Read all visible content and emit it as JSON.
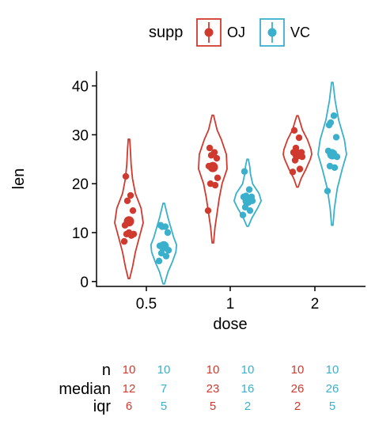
{
  "chart_data": {
    "type": "violin",
    "xlabel": "dose",
    "ylabel": "len",
    "ylim": [
      -1,
      43
    ],
    "yticks": [
      0,
      10,
      20,
      30,
      40
    ],
    "categories": [
      "0.5",
      "1",
      "2"
    ],
    "legend": {
      "title": "supp",
      "position": "top"
    },
    "grid": false,
    "series": [
      {
        "name": "OJ",
        "color": "#D03A2E",
        "violins": [
          {
            "min": 0.6,
            "max": 29.1,
            "median": 12.3,
            "profile": [
              [
                0.6,
                0.05
              ],
              [
                3,
                0.25
              ],
              [
                6,
                0.45
              ],
              [
                9,
                0.72
              ],
              [
                12,
                1.0
              ],
              [
                15,
                0.85
              ],
              [
                18,
                0.45
              ],
              [
                21,
                0.25
              ],
              [
                24,
                0.15
              ],
              [
                27,
                0.1
              ],
              [
                29.1,
                0.05
              ]
            ],
            "points": [
              8.2,
              9.4,
              9.7,
              9.7,
              10.0,
              11.5,
              14.5,
              16.5,
              17.6,
              21.5
            ]
          },
          {
            "min": 7.9,
            "max": 34.0,
            "median": 23.4,
            "profile": [
              [
                7.9,
                0.05
              ],
              [
                11,
                0.15
              ],
              [
                14,
                0.3
              ],
              [
                17,
                0.45
              ],
              [
                20,
                0.65
              ],
              [
                23,
                1.0
              ],
              [
                26,
                0.95
              ],
              [
                29,
                0.6
              ],
              [
                31,
                0.3
              ],
              [
                34.0,
                0.05
              ]
            ],
            "points": [
              14.5,
              19.7,
              20.0,
              21.2,
              23.3,
              23.6,
              25.2,
              25.8,
              26.4,
              27.3
            ]
          },
          {
            "min": 19.3,
            "max": 33.9,
            "median": 26.0,
            "profile": [
              [
                19.3,
                0.05
              ],
              [
                21,
                0.25
              ],
              [
                23,
                0.6
              ],
              [
                25,
                0.9
              ],
              [
                26,
                1.0
              ],
              [
                27,
                0.95
              ],
              [
                29,
                0.7
              ],
              [
                31,
                0.35
              ],
              [
                33.9,
                0.05
              ]
            ],
            "points": [
              22.4,
              23.0,
              24.8,
              25.5,
              26.0,
              26.4,
              26.4,
              27.3,
              29.4,
              30.9
            ]
          }
        ]
      },
      {
        "name": "VC",
        "color": "#3AB0CC",
        "violins": [
          {
            "min": -0.5,
            "max": 16.0,
            "median": 7.2,
            "profile": [
              [
                -0.5,
                0.05
              ],
              [
                2,
                0.3
              ],
              [
                4,
                0.6
              ],
              [
                6,
                0.85
              ],
              [
                7.5,
                0.9
              ],
              [
                9,
                0.7
              ],
              [
                11,
                0.5
              ],
              [
                13,
                0.3
              ],
              [
                16.0,
                0.05
              ]
            ],
            "points": [
              4.2,
              5.2,
              5.8,
              6.4,
              7.0,
              7.3,
              10.0,
              11.2,
              11.2,
              11.5
            ]
          },
          {
            "min": 11.3,
            "max": 25.0,
            "median": 16.5,
            "profile": [
              [
                11.3,
                0.05
              ],
              [
                13,
                0.3
              ],
              [
                15,
                0.7
              ],
              [
                16.5,
                0.95
              ],
              [
                18,
                0.8
              ],
              [
                20,
                0.35
              ],
              [
                22,
                0.2
              ],
              [
                23.5,
                0.15
              ],
              [
                25.0,
                0.05
              ]
            ],
            "points": [
              13.6,
              14.5,
              15.2,
              16.5,
              16.5,
              17.3,
              17.3,
              17.5,
              18.8,
              22.5
            ]
          },
          {
            "min": 11.5,
            "max": 40.7,
            "median": 26.0,
            "profile": [
              [
                11.5,
                0.05
              ],
              [
                15,
                0.15
              ],
              [
                19,
                0.35
              ],
              [
                23,
                0.7
              ],
              [
                26,
                1.0
              ],
              [
                29,
                0.85
              ],
              [
                33,
                0.45
              ],
              [
                37,
                0.2
              ],
              [
                40.7,
                0.05
              ]
            ],
            "points": [
              18.5,
              23.3,
              23.6,
              25.5,
              26.4,
              26.7,
              29.5,
              32.5,
              33.9,
              32.0
            ]
          }
        ]
      }
    ],
    "summary_table": {
      "rows": [
        {
          "label": "n",
          "values": [
            [
              "10",
              "10"
            ],
            [
              "10",
              "10"
            ],
            [
              "10",
              "10"
            ]
          ]
        },
        {
          "label": "median",
          "values": [
            [
              "12",
              "7"
            ],
            [
              "23",
              "16"
            ],
            [
              "26",
              "26"
            ]
          ]
        },
        {
          "label": "iqr",
          "values": [
            [
              "6",
              "5"
            ],
            [
              "5",
              "2"
            ],
            [
              "2",
              "5"
            ]
          ]
        }
      ]
    }
  }
}
